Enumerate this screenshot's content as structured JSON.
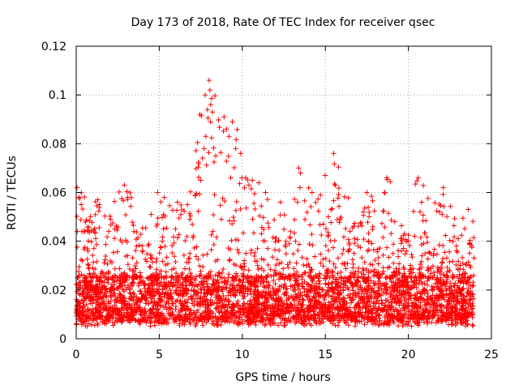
{
  "chart_data": {
    "type": "scatter",
    "title": "Day 173 of 2018, Rate Of TEC Index for receiver qsec",
    "xlabel": "GPS time / hours",
    "ylabel": "ROTI / TECUs",
    "xlim": [
      0,
      25
    ],
    "ylim": [
      0,
      0.12
    ],
    "xticks": [
      0,
      5,
      10,
      15,
      20,
      25
    ],
    "xtick_labels": [
      "0",
      "5",
      "10",
      "15",
      "20",
      "25"
    ],
    "yticks": [
      0,
      0.02,
      0.04,
      0.06,
      0.08,
      0.1,
      0.12
    ],
    "ytick_labels": [
      "0",
      "0.02",
      "0.04",
      "0.06",
      "0.08",
      "0.1",
      "0.12"
    ],
    "grid": true,
    "marker": "+",
    "color": "#ff0000",
    "x_range": [
      0.0,
      23.95
    ],
    "baseline_band": [
      0.007,
      0.025
    ],
    "peaks": [
      {
        "x": 0.05,
        "y": 0.062
      },
      {
        "x": 0.15,
        "y": 0.058
      },
      {
        "x": 0.3,
        "y": 0.055
      },
      {
        "x": 1.3,
        "y": 0.057
      },
      {
        "x": 1.4,
        "y": 0.055
      },
      {
        "x": 2.9,
        "y": 0.063
      },
      {
        "x": 3.1,
        "y": 0.058
      },
      {
        "x": 4.9,
        "y": 0.06
      },
      {
        "x": 5.3,
        "y": 0.058
      },
      {
        "x": 6.1,
        "y": 0.056
      },
      {
        "x": 6.7,
        "y": 0.055
      },
      {
        "x": 7.5,
        "y": 0.065
      },
      {
        "x": 7.7,
        "y": 0.078
      },
      {
        "x": 7.8,
        "y": 0.083
      },
      {
        "x": 7.9,
        "y": 0.094
      },
      {
        "x": 8.0,
        "y": 0.106
      },
      {
        "x": 8.05,
        "y": 0.102
      },
      {
        "x": 8.1,
        "y": 0.096
      },
      {
        "x": 8.2,
        "y": 0.093
      },
      {
        "x": 8.4,
        "y": 0.075
      },
      {
        "x": 8.9,
        "y": 0.091
      },
      {
        "x": 9.05,
        "y": 0.086
      },
      {
        "x": 9.2,
        "y": 0.083
      },
      {
        "x": 9.4,
        "y": 0.089
      },
      {
        "x": 9.6,
        "y": 0.078
      },
      {
        "x": 9.9,
        "y": 0.076
      },
      {
        "x": 9.3,
        "y": 0.066
      },
      {
        "x": 10.2,
        "y": 0.066
      },
      {
        "x": 10.6,
        "y": 0.065
      },
      {
        "x": 11.0,
        "y": 0.064
      },
      {
        "x": 11.4,
        "y": 0.06
      },
      {
        "x": 12.3,
        "y": 0.056
      },
      {
        "x": 13.4,
        "y": 0.07
      },
      {
        "x": 13.5,
        "y": 0.068
      },
      {
        "x": 14.2,
        "y": 0.06
      },
      {
        "x": 15.5,
        "y": 0.076
      },
      {
        "x": 15.6,
        "y": 0.063
      },
      {
        "x": 17.5,
        "y": 0.06
      },
      {
        "x": 18.7,
        "y": 0.066
      },
      {
        "x": 20.6,
        "y": 0.066
      },
      {
        "x": 20.8,
        "y": 0.056
      },
      {
        "x": 22.1,
        "y": 0.062
      },
      {
        "x": 23.6,
        "y": 0.053
      }
    ]
  }
}
